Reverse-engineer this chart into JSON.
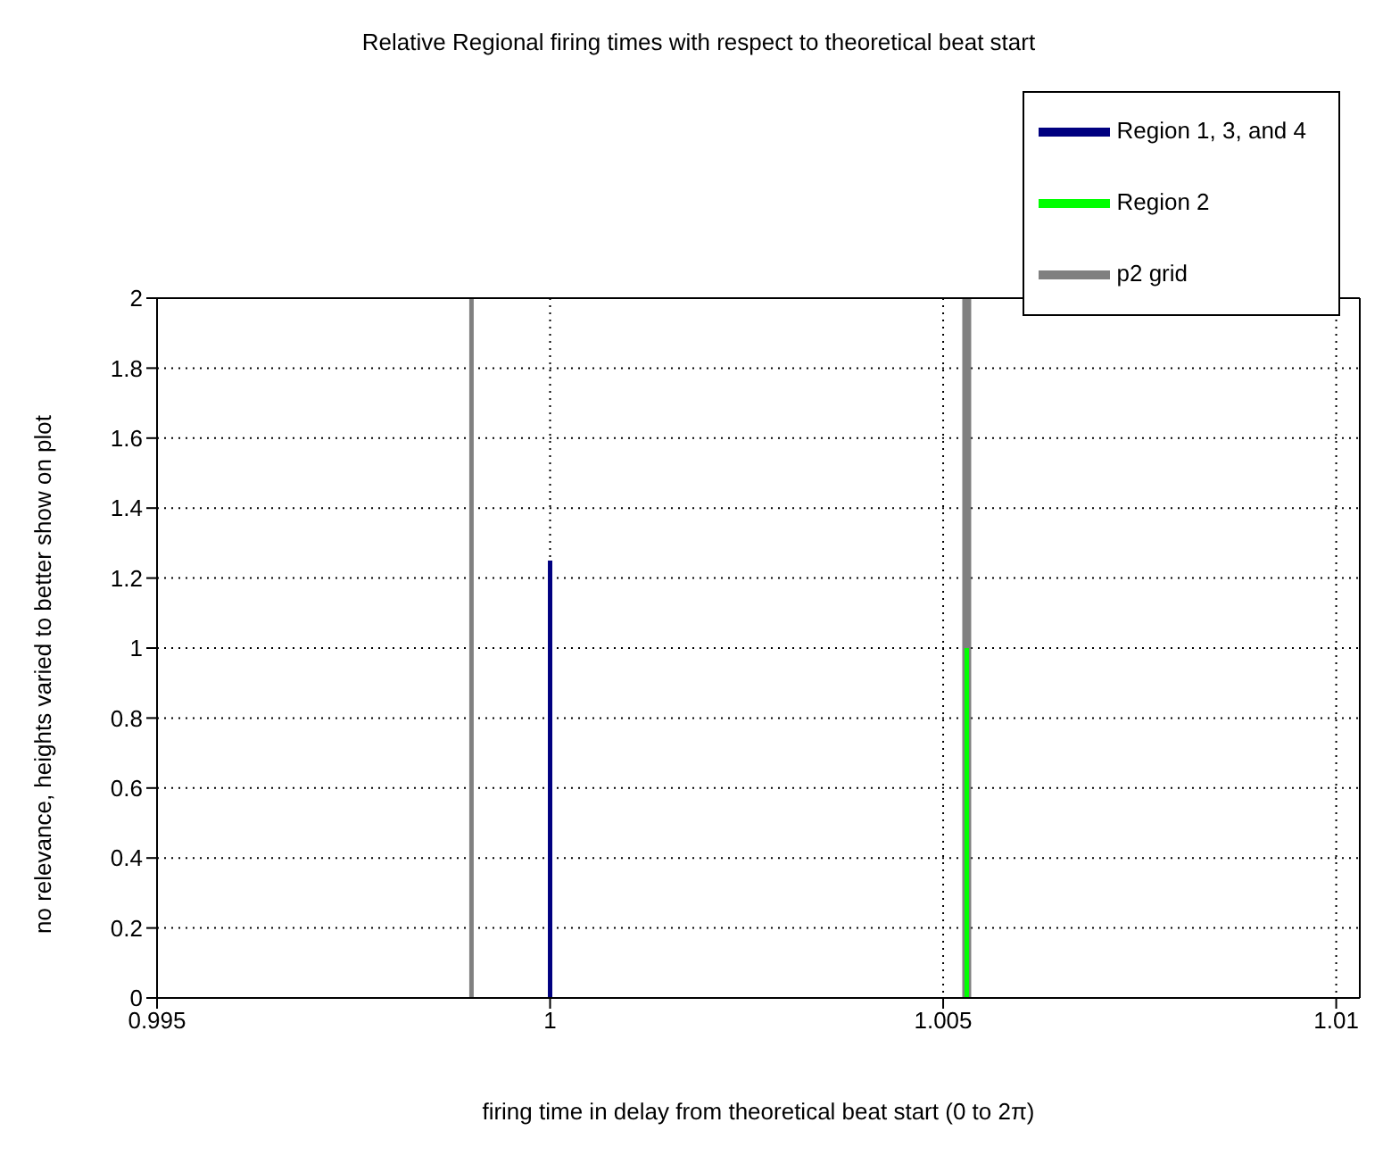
{
  "chart_data": {
    "type": "line",
    "title": "Relative Regional firing times with respect to theoretical beat start",
    "xlabel": "firing time in delay from theoretical beat start (0 to 2π)",
    "ylabel": "no relevance, heights varied to better show on plot",
    "series": [
      {
        "name": "Region 1, 3, and 4",
        "color": "#000080",
        "x": [
          1.0,
          1.0
        ],
        "values": [
          0,
          1.25
        ]
      },
      {
        "name": "Region 2",
        "color": "#00ff00",
        "x": [
          1.0053,
          1.0053
        ],
        "values": [
          0,
          1
        ]
      },
      {
        "name": "p2 grid",
        "color": "#808080",
        "x": [
          0.999,
          0.999
        ],
        "values": [
          0,
          2
        ]
      },
      {
        "color": "#808080",
        "x": [
          1.0053,
          1.0053
        ],
        "values": [
          0,
          2
        ]
      }
    ],
    "xlim": [
      0.995,
      1.0103
    ],
    "xticks": [
      0.995,
      1,
      1.005,
      1.01
    ],
    "ylim": [
      0,
      2
    ],
    "yticks": [
      0,
      0.2,
      0.4,
      0.6,
      0.8,
      1,
      1.2,
      1.4,
      1.6,
      1.8,
      2
    ],
    "grid": true,
    "legend": "top right",
    "marker": "none",
    "line_style": "solid"
  }
}
